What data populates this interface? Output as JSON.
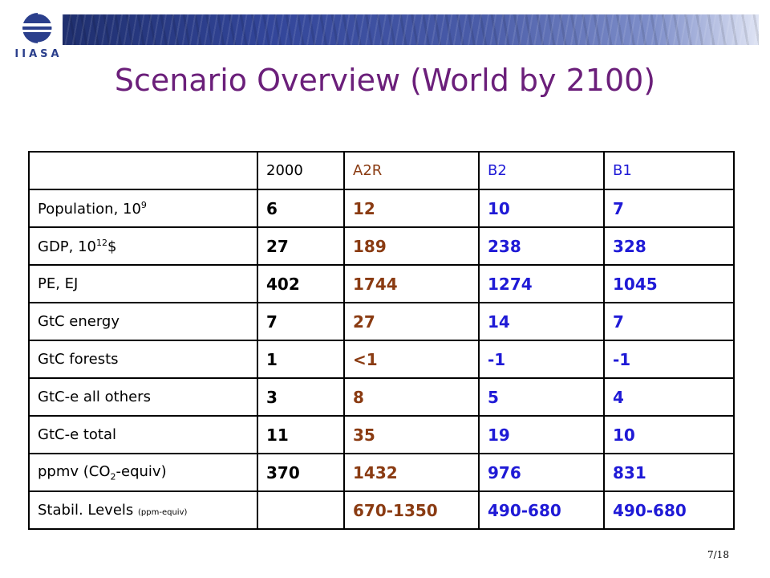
{
  "header": {
    "logo_text": "IIASA"
  },
  "title": "Scenario Overview (World by 2100)",
  "table": {
    "columns": [
      "",
      "2000",
      "A2R",
      "B2",
      "B1"
    ],
    "rows": [
      {
        "label_main": "Population, 10",
        "label_sup": "9",
        "label_after": "",
        "values": [
          "6",
          "12",
          "10",
          "7"
        ]
      },
      {
        "label_main": "GDP, 10",
        "label_sup": "12",
        "label_after": "$",
        "values": [
          "27",
          "189",
          "238",
          "328"
        ]
      },
      {
        "label_main": "PE, EJ",
        "values": [
          "402",
          "1744",
          "1274",
          "1045"
        ]
      },
      {
        "label_main": "GtC energy",
        "values": [
          "7",
          "27",
          "14",
          "7"
        ]
      },
      {
        "label_main": "GtC forests",
        "values": [
          "1",
          "<1",
          "-1",
          "-1"
        ]
      },
      {
        "label_main": "GtC-e all others",
        "values": [
          "3",
          "8",
          "5",
          "4"
        ]
      },
      {
        "label_main": "GtC-e total",
        "values": [
          "11",
          "35",
          "19",
          "10"
        ]
      },
      {
        "label_main": "ppmv (CO",
        "label_sub": "2",
        "label_after": "-equiv)",
        "values": [
          "370",
          "1432",
          "976",
          "831"
        ]
      },
      {
        "label_main": "Stabil. Levels",
        "label_small": "(ppm-equiv)",
        "values": [
          "",
          "670-1350",
          "490-680",
          "490-680"
        ]
      }
    ]
  },
  "page_number": "7/18",
  "colors": {
    "title": "#6b1f7a",
    "a2r": "#8a3b12",
    "b_scenarios": "#1f1ad6"
  }
}
